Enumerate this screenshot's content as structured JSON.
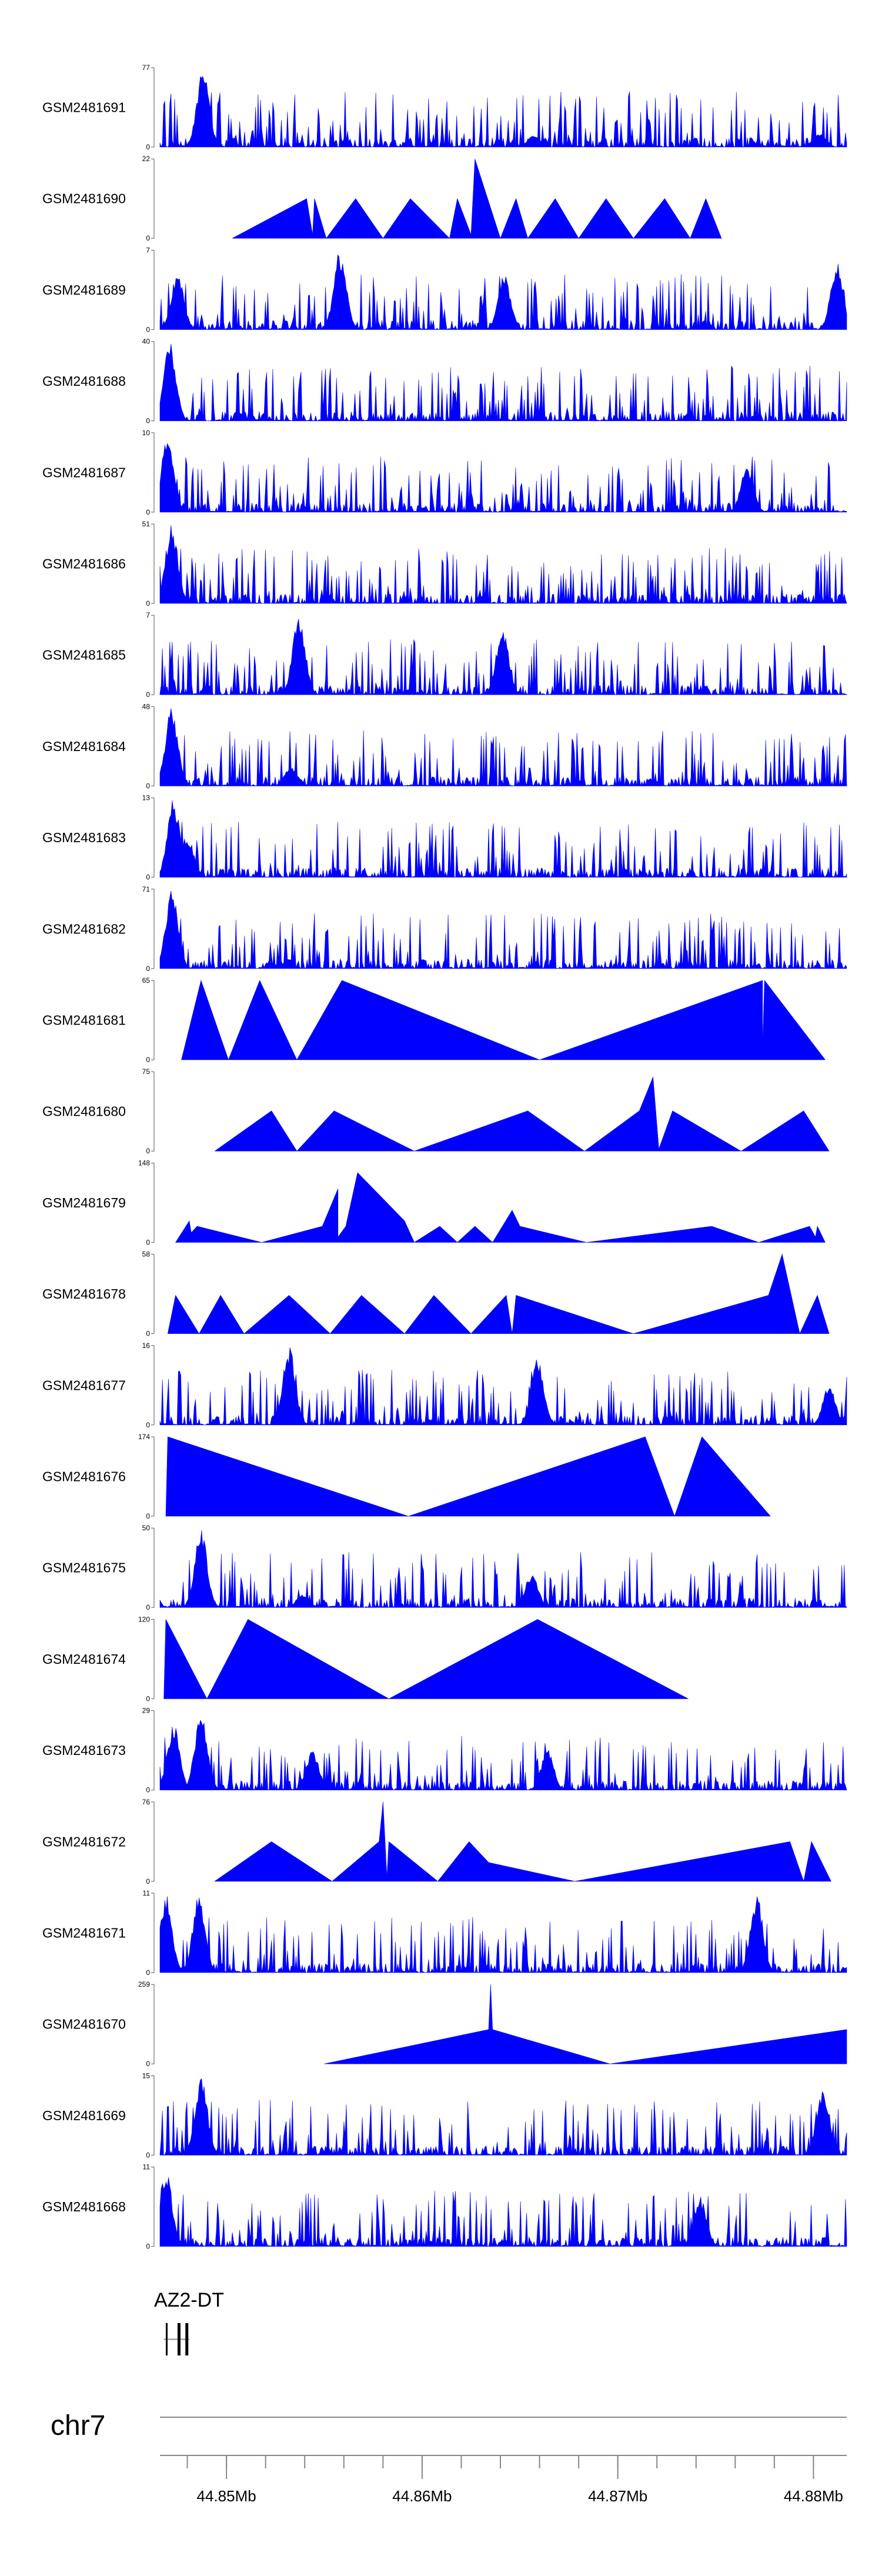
{
  "chart_data": {
    "type": "area",
    "chromosome": "chr7",
    "gene_label": "AZ2-DT",
    "xlim": [
      44.8466,
      44.8817
    ],
    "x_ticks": [
      {
        "value": 44.85,
        "label": "44.85Mb"
      },
      {
        "value": 44.86,
        "label": "44.86Mb"
      },
      {
        "value": 44.87,
        "label": "44.87Mb"
      },
      {
        "value": 44.88,
        "label": "44.88Mb"
      }
    ],
    "colors": {
      "fill": "#0000ff",
      "axis": "#555555",
      "text": "#000000"
    },
    "tracks": [
      {
        "name": "GSM2481691",
        "ymax": 77,
        "kind": "dense",
        "profile": [
          [
            44.8488,
            77
          ],
          [
            44.8657,
            12
          ],
          [
            44.8803,
            14
          ]
        ]
      },
      {
        "name": "GSM2481690",
        "ymax": 22,
        "kind": "tri",
        "points": [
          [
            44.8503,
            0
          ],
          [
            44.8541,
            11
          ],
          [
            44.8544,
            1
          ],
          [
            44.8545,
            11
          ],
          [
            44.8551,
            0
          ],
          [
            44.8566,
            11
          ],
          [
            44.858,
            0
          ],
          [
            44.8594,
            11
          ],
          [
            44.8614,
            0
          ],
          [
            44.8618,
            11
          ],
          [
            44.8625,
            1
          ],
          [
            44.8627,
            22
          ],
          [
            44.864,
            0
          ],
          [
            44.8648,
            11
          ],
          [
            44.8654,
            0
          ],
          [
            44.8668,
            11
          ],
          [
            44.868,
            0
          ],
          [
            44.8694,
            11
          ],
          [
            44.8708,
            0
          ],
          [
            44.8724,
            11
          ],
          [
            44.8737,
            0
          ],
          [
            44.8745,
            11
          ],
          [
            44.8753,
            0
          ]
        ]
      },
      {
        "name": "GSM2481689",
        "ymax": 7,
        "kind": "dense",
        "profile": [
          [
            44.8475,
            5
          ],
          [
            44.8558,
            7
          ],
          [
            44.8642,
            5
          ],
          [
            44.8812,
            6
          ]
        ]
      },
      {
        "name": "GSM2481688",
        "ymax": 40,
        "kind": "dense",
        "profile": [
          [
            44.8471,
            40
          ]
        ]
      },
      {
        "name": "GSM2481687",
        "ymax": 10,
        "kind": "dense",
        "profile": [
          [
            44.847,
            10
          ],
          [
            44.8766,
            6
          ]
        ]
      },
      {
        "name": "GSM2481686",
        "ymax": 51,
        "kind": "dense",
        "profile": [
          [
            44.8472,
            51
          ]
        ]
      },
      {
        "name": "GSM2481685",
        "ymax": 7,
        "kind": "dense",
        "profile": [
          [
            44.8537,
            7
          ],
          [
            44.8641,
            6
          ]
        ]
      },
      {
        "name": "GSM2481684",
        "ymax": 48,
        "kind": "dense",
        "profile": [
          [
            44.8472,
            48
          ],
          [
            44.8533,
            12
          ]
        ]
      },
      {
        "name": "GSM2481683",
        "ymax": 13,
        "kind": "dense",
        "profile": [
          [
            44.8473,
            13
          ],
          [
            44.848,
            7
          ]
        ]
      },
      {
        "name": "GSM2481682",
        "ymax": 71,
        "kind": "dense",
        "profile": [
          [
            44.8472,
            71
          ],
          [
            44.8526,
            4
          ]
        ]
      },
      {
        "name": "GSM2481681",
        "ymax": 65,
        "kind": "tri",
        "points": [
          [
            44.8477,
            0
          ],
          [
            44.8487,
            65
          ],
          [
            44.8501,
            0
          ],
          [
            44.8517,
            65
          ],
          [
            44.8536,
            0
          ],
          [
            44.8559,
            65
          ],
          [
            44.866,
            0
          ],
          [
            44.8774,
            65
          ],
          [
            44.8774,
            10
          ],
          [
            44.8775,
            65
          ],
          [
            44.8806,
            0
          ]
        ]
      },
      {
        "name": "GSM2481680",
        "ymax": 75,
        "kind": "tri",
        "points": [
          [
            44.8494,
            0
          ],
          [
            44.8523,
            38
          ],
          [
            44.8536,
            0
          ],
          [
            44.8555,
            38
          ],
          [
            44.8596,
            0
          ],
          [
            44.8654,
            38
          ],
          [
            44.8683,
            0
          ],
          [
            44.8711,
            38
          ],
          [
            44.8718,
            70
          ],
          [
            44.8721,
            2
          ],
          [
            44.8728,
            38
          ],
          [
            44.8763,
            0
          ],
          [
            44.8795,
            38
          ],
          [
            44.8808,
            0
          ]
        ]
      },
      {
        "name": "GSM2481679",
        "ymax": 148,
        "kind": "tri",
        "points": [
          [
            44.8474,
            0
          ],
          [
            44.8481,
            40
          ],
          [
            44.8482,
            18
          ],
          [
            44.8485,
            30
          ],
          [
            44.8518,
            0
          ],
          [
            44.8549,
            30
          ],
          [
            44.8557,
            100
          ],
          [
            44.8557,
            10
          ],
          [
            44.8561,
            30
          ],
          [
            44.8567,
            130
          ],
          [
            44.8591,
            40
          ],
          [
            44.8596,
            0
          ],
          [
            44.8609,
            30
          ],
          [
            44.8618,
            0
          ],
          [
            44.8627,
            30
          ],
          [
            44.8636,
            0
          ],
          [
            44.8646,
            60
          ],
          [
            44.865,
            30
          ],
          [
            44.8684,
            0
          ],
          [
            44.8748,
            30
          ],
          [
            44.8772,
            0
          ],
          [
            44.8798,
            30
          ],
          [
            44.8801,
            10
          ],
          [
            44.8802,
            30
          ],
          [
            44.8806,
            0
          ]
        ]
      },
      {
        "name": "GSM2481678",
        "ymax": 58,
        "kind": "tri",
        "points": [
          [
            44.847,
            0
          ],
          [
            44.8474,
            28
          ],
          [
            44.8486,
            0
          ],
          [
            44.8497,
            28
          ],
          [
            44.8509,
            0
          ],
          [
            44.8532,
            28
          ],
          [
            44.8553,
            0
          ],
          [
            44.8569,
            28
          ],
          [
            44.8591,
            0
          ],
          [
            44.8606,
            28
          ],
          [
            44.8625,
            0
          ],
          [
            44.8643,
            28
          ],
          [
            44.8646,
            0
          ],
          [
            44.8648,
            28
          ],
          [
            44.8708,
            0
          ],
          [
            44.8777,
            28
          ],
          [
            44.8784,
            58
          ],
          [
            44.8793,
            0
          ],
          [
            44.8802,
            28
          ],
          [
            44.8808,
            0
          ]
        ]
      },
      {
        "name": "GSM2481677",
        "ymax": 16,
        "kind": "dense",
        "profile": [
          [
            44.8532,
            16
          ],
          [
            44.8659,
            14
          ],
          [
            44.8808,
            8
          ]
        ]
      },
      {
        "name": "GSM2481676",
        "ymax": 174,
        "kind": "tri",
        "points": [
          [
            44.8469,
            0
          ],
          [
            44.847,
            174
          ],
          [
            44.8593,
            0
          ],
          [
            44.8714,
            174
          ],
          [
            44.8729,
            0
          ],
          [
            44.8743,
            174
          ],
          [
            44.8778,
            0
          ]
        ]
      },
      {
        "name": "GSM2481675",
        "ymax": 50,
        "kind": "dense",
        "profile": [
          [
            44.8487,
            50
          ],
          [
            44.8539,
            8
          ],
          [
            44.8656,
            22
          ]
        ]
      },
      {
        "name": "GSM2481674",
        "ymax": 120,
        "kind": "tri",
        "points": [
          [
            44.8468,
            0
          ],
          [
            44.8469,
            120
          ],
          [
            44.849,
            0
          ],
          [
            44.8511,
            120
          ],
          [
            44.8583,
            0
          ],
          [
            44.8659,
            120
          ],
          [
            44.8736,
            0
          ]
        ]
      },
      {
        "name": "GSM2481673",
        "ymax": 29,
        "kind": "dense",
        "profile": [
          [
            44.8473,
            25
          ],
          [
            44.8487,
            29
          ],
          [
            44.8544,
            15
          ],
          [
            44.8664,
            15
          ]
        ]
      },
      {
        "name": "GSM2481672",
        "ymax": 76,
        "kind": "tri",
        "points": [
          [
            44.8494,
            0
          ],
          [
            44.8523,
            38
          ],
          [
            44.8554,
            0
          ],
          [
            44.8578,
            38
          ],
          [
            44.858,
            76
          ],
          [
            44.8582,
            4
          ],
          [
            44.8583,
            38
          ],
          [
            44.8608,
            0
          ],
          [
            44.8624,
            38
          ],
          [
            44.8634,
            18
          ],
          [
            44.8678,
            0
          ],
          [
            44.8788,
            38
          ],
          [
            44.8795,
            0
          ],
          [
            44.8799,
            38
          ],
          [
            44.8809,
            0
          ]
        ]
      },
      {
        "name": "GSM2481671",
        "ymax": 11,
        "kind": "dense",
        "profile": [
          [
            44.8469,
            11
          ],
          [
            44.8486,
            11
          ],
          [
            44.8771,
            11
          ]
        ]
      },
      {
        "name": "GSM2481670",
        "ymax": 259,
        "kind": "tri",
        "points": [
          [
            44.855,
            0
          ],
          [
            44.8634,
            112
          ],
          [
            44.8635,
            259
          ],
          [
            44.8636,
            112
          ],
          [
            44.8696,
            0
          ],
          [
            44.8817,
            112
          ]
        ]
      },
      {
        "name": "GSM2481669",
        "ymax": 15,
        "kind": "dense",
        "profile": [
          [
            44.8487,
            15
          ],
          [
            44.8805,
            13
          ]
        ]
      },
      {
        "name": "GSM2481668",
        "ymax": 11,
        "kind": "dense",
        "profile": [
          [
            44.8469,
            11
          ],
          [
            44.8742,
            7
          ]
        ]
      }
    ]
  }
}
